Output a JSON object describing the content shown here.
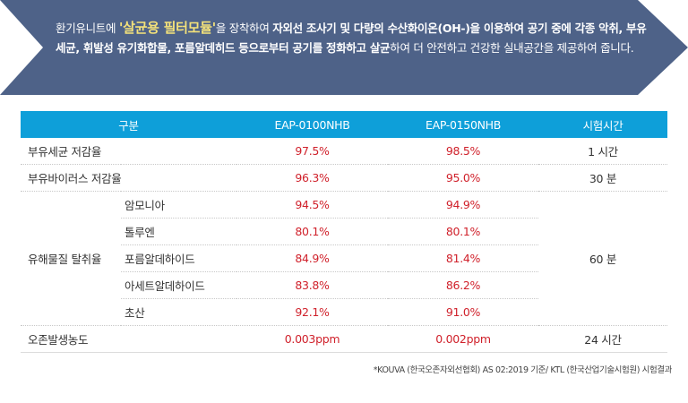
{
  "banner": {
    "seg1": "환기유니트에 ",
    "seg2_highlight": "'살균용 필터모듈'",
    "seg3": "을 장착하여 ",
    "seg4_bold": "자외선 조사기 및 다량의 수산화이온(OH-)을 이용하여 공기 중에 각종 악취, 부유세균, 휘발성 유기화합물, 포름알데히드 등으로부터 공기를 정화하고 살균",
    "seg5": "하여 더 안전하고 건강한 실내공간을 제공하여 줍니다.",
    "bg_color": "#4e6288",
    "highlight_color": "#f3e17a"
  },
  "table": {
    "headers": [
      "구분",
      "EAP-0100NHB",
      "EAP-0150NHB",
      "시험시간"
    ],
    "header_color": "#0e9fd9",
    "value_color": "#d0212b",
    "rows": {
      "r1": {
        "label": "부유세균 저감율",
        "v1": "97.5%",
        "v2": "98.5%",
        "time": "1 시간"
      },
      "r2": {
        "label": "부유바이러스 저감율",
        "v1": "96.3%",
        "v2": "95.0%",
        "time": "30 분"
      },
      "voc": {
        "label": "유해물질 탈취율",
        "time": "60 분",
        "items": [
          {
            "sub": "암모니아",
            "v1": "94.5%",
            "v2": "94.9%"
          },
          {
            "sub": "톨루엔",
            "v1": "80.1%",
            "v2": "80.1%"
          },
          {
            "sub": "포름알데하이드",
            "v1": "84.9%",
            "v2": "81.4%"
          },
          {
            "sub": "아세트알데하이드",
            "v1": "83.8%",
            "v2": "86.2%"
          },
          {
            "sub": "초산",
            "v1": "92.1%",
            "v2": "91.0%"
          }
        ]
      },
      "r3": {
        "label": "오존발생농도",
        "v1": "0.003ppm",
        "v2": "0.002ppm",
        "time": "24 시간"
      }
    }
  },
  "footnote": "*KOUVA (한국오존자외선협회) AS 02:2019 기준/ KTL (한국산업기술시험원) 시험결과"
}
